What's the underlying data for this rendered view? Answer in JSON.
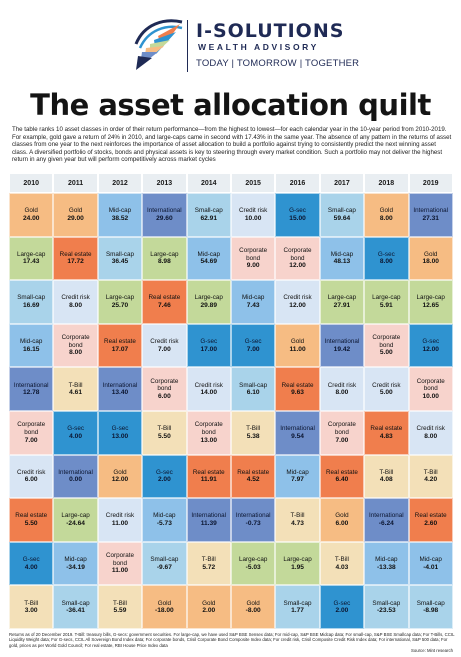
{
  "brand": {
    "name": "I-SOLUTIONS",
    "subtitle": "WEALTH ADVISORY",
    "tagline": "TODAY | TOMORROW | TOGETHER"
  },
  "title": "The asset allocation quilt",
  "description": "The table ranks 10 asset classes in order of their return performance—from the highest to lowest—for each calendar year in the 10-year period from 2010-2019. For example, gold gave a return of 24% in 2010, and large-caps came in second with 17.43% in the same year. The absence of any pattern in the returns of asset classes from one year to the next reinforces the importance of asset allocation to build a portfolio against trying to consistently predict the next winning asset class. A diversified portfolio of stocks, bonds and physical assets is key to steering through every market condition. Such a portfolio may not deliver the highest return in any given year but will perform competitively across market cycles",
  "colors": {
    "Gold": "#f6bc83",
    "Large-cap": "#c3d99a",
    "Small-cap": "#a9d3ea",
    "Mid-cap": "#8ec1e9",
    "International": "#6e8dc8",
    "Corporate bond": "#f7d3cc",
    "Credit risk": "#d8e5f4",
    "T-Bill": "#f3e0b8",
    "G-sec": "#2f93d0",
    "Real estate": "#f07e4d"
  },
  "years": [
    "2010",
    "2011",
    "2012",
    "2013",
    "2014",
    "2015",
    "2016",
    "2017",
    "2018",
    "2019"
  ],
  "quilt": [
    [
      {
        "asset": "Gold",
        "label": "Gold",
        "value": "24.00"
      },
      {
        "asset": "Large-cap",
        "label": "Large-cap",
        "value": "17.43"
      },
      {
        "asset": "Small-cap",
        "label": "Small-cap",
        "value": "16.69"
      },
      {
        "asset": "Mid-cap",
        "label": "Mid-cap",
        "value": "16.15"
      },
      {
        "asset": "International",
        "label": "International",
        "value": "12.78"
      },
      {
        "asset": "Corporate bond",
        "label": "Corporate\nbond",
        "value": "7.00"
      },
      {
        "asset": "Credit risk",
        "label": "Credit risk",
        "value": "6.00"
      },
      {
        "asset": "Real estate",
        "label": "Real estate",
        "value": "5.50"
      },
      {
        "asset": "G-sec",
        "label": "G-sec",
        "value": "4.00"
      },
      {
        "asset": "T-Bill",
        "label": "T-Bill",
        "value": "3.00"
      }
    ],
    [
      {
        "asset": "Gold",
        "label": "Gold",
        "value": "29.00"
      },
      {
        "asset": "Real estate",
        "label": "Real estate",
        "value": "17.72"
      },
      {
        "asset": "Credit risk",
        "label": "Credit risk",
        "value": "8.00"
      },
      {
        "asset": "Corporate bond",
        "label": "Corporate\nbond",
        "value": "8.00"
      },
      {
        "asset": "T-Bill",
        "label": "T-Bill",
        "value": "4.61"
      },
      {
        "asset": "G-sec",
        "label": "G-sec",
        "value": "4.00"
      },
      {
        "asset": "International",
        "label": "International",
        "value": "0.00"
      },
      {
        "asset": "Large-cap",
        "label": "Large-cap",
        "value": "-24.64"
      },
      {
        "asset": "Mid-cap",
        "label": "Mid-cap",
        "value": "-34.19"
      },
      {
        "asset": "Small-cap",
        "label": "Small-cap",
        "value": "-36.41"
      }
    ],
    [
      {
        "asset": "Mid-cap",
        "label": "Mid-cap",
        "value": "38.52"
      },
      {
        "asset": "Small-cap",
        "label": "Small-cap",
        "value": "36.45"
      },
      {
        "asset": "Large-cap",
        "label": "Large-cap",
        "value": "25.70"
      },
      {
        "asset": "Real estate",
        "label": "Real estate",
        "value": "17.07"
      },
      {
        "asset": "International",
        "label": "International",
        "value": "13.40"
      },
      {
        "asset": "G-sec",
        "label": "G-sec",
        "value": "13.00"
      },
      {
        "asset": "Gold",
        "label": "Gold",
        "value": "12.00"
      },
      {
        "asset": "Credit risk",
        "label": "Credit risk",
        "value": "11.00"
      },
      {
        "asset": "Corporate bond",
        "label": "Corporate\nbond",
        "value": "11.00"
      },
      {
        "asset": "T-Bill",
        "label": "T-Bill",
        "value": "5.59"
      }
    ],
    [
      {
        "asset": "International",
        "label": "International",
        "value": "29.60"
      },
      {
        "asset": "Large-cap",
        "label": "Large-cap",
        "value": "8.98"
      },
      {
        "asset": "Real estate",
        "label": "Real estate",
        "value": "7.46"
      },
      {
        "asset": "Credit risk",
        "label": "Credit risk",
        "value": "7.00"
      },
      {
        "asset": "Corporate bond",
        "label": "Corporate\nbond",
        "value": "6.00"
      },
      {
        "asset": "T-Bill",
        "label": "T-Bill",
        "value": "5.50"
      },
      {
        "asset": "G-sec",
        "label": "G-sec",
        "value": "2.00"
      },
      {
        "asset": "Mid-cap",
        "label": "Mid-cap",
        "value": "-5.73"
      },
      {
        "asset": "Small-cap",
        "label": "Small-cap",
        "value": "-9.67"
      },
      {
        "asset": "Gold",
        "label": "Gold",
        "value": "-18.00"
      }
    ],
    [
      {
        "asset": "Small-cap",
        "label": "Small-cap",
        "value": "62.91"
      },
      {
        "asset": "Mid-cap",
        "label": "Mid-cap",
        "value": "54.69"
      },
      {
        "asset": "Large-cap",
        "label": "Large-cap",
        "value": "29.89"
      },
      {
        "asset": "G-sec",
        "label": "G-sec",
        "value": "17.00"
      },
      {
        "asset": "Credit risk",
        "label": "Credit risk",
        "value": "14.00"
      },
      {
        "asset": "Corporate bond",
        "label": "Corporate\nbond",
        "value": "13.00"
      },
      {
        "asset": "Real estate",
        "label": "Real estate",
        "value": "11.91"
      },
      {
        "asset": "International",
        "label": "International",
        "value": "11.39"
      },
      {
        "asset": "T-Bill",
        "label": "T-Bill",
        "value": "5.72"
      },
      {
        "asset": "Gold",
        "label": "Gold",
        "value": "2.00"
      }
    ],
    [
      {
        "asset": "Credit risk",
        "label": "Credit risk",
        "value": "10.00"
      },
      {
        "asset": "Corporate bond",
        "label": "Corporate\nbond",
        "value": "9.00"
      },
      {
        "asset": "Mid-cap",
        "label": "Mid-cap",
        "value": "7.43"
      },
      {
        "asset": "G-sec",
        "label": "G-sec",
        "value": "7.00"
      },
      {
        "asset": "Small-cap",
        "label": "Small-cap",
        "value": "6.10"
      },
      {
        "asset": "T-Bill",
        "label": "T-Bill",
        "value": "5.38"
      },
      {
        "asset": "Real estate",
        "label": "Real estate",
        "value": "4.52"
      },
      {
        "asset": "International",
        "label": "International",
        "value": "-0.73"
      },
      {
        "asset": "Large-cap",
        "label": "Large-cap",
        "value": "-5.03"
      },
      {
        "asset": "Gold",
        "label": "Gold",
        "value": "-8.00"
      }
    ],
    [
      {
        "asset": "G-sec",
        "label": "G-sec",
        "value": "15.00"
      },
      {
        "asset": "Corporate bond",
        "label": "Corporate\nbond",
        "value": "12.00"
      },
      {
        "asset": "Credit risk",
        "label": "Credit risk",
        "value": "12.00"
      },
      {
        "asset": "Gold",
        "label": "Gold",
        "value": "11.00"
      },
      {
        "asset": "Real estate",
        "label": "Real estate",
        "value": "9.63"
      },
      {
        "asset": "International",
        "label": "International",
        "value": "9.54"
      },
      {
        "asset": "Mid-cap",
        "label": "Mid-cap",
        "value": "7.97"
      },
      {
        "asset": "T-Bill",
        "label": "T-Bill",
        "value": "4.73"
      },
      {
        "asset": "Large-cap",
        "label": "Large-cap",
        "value": "1.95"
      },
      {
        "asset": "Small-cap",
        "label": "Small-cap",
        "value": "1.77"
      }
    ],
    [
      {
        "asset": "Small-cap",
        "label": "Small-cap",
        "value": "59.64"
      },
      {
        "asset": "Mid-cap",
        "label": "Mid-cap",
        "value": "48.13"
      },
      {
        "asset": "Large-cap",
        "label": "Large-cap",
        "value": "27.91"
      },
      {
        "asset": "International",
        "label": "International",
        "value": "19.42"
      },
      {
        "asset": "Credit risk",
        "label": "Credit risk",
        "value": "8.00"
      },
      {
        "asset": "Corporate bond",
        "label": "Corporate\nbond",
        "value": "7.00"
      },
      {
        "asset": "Real estate",
        "label": "Real estate",
        "value": "6.40"
      },
      {
        "asset": "Gold",
        "label": "Gold",
        "value": "6.00"
      },
      {
        "asset": "T-Bill",
        "label": "T-Bill",
        "value": "4.03"
      },
      {
        "asset": "G-sec",
        "label": "G-sec",
        "value": "2.00"
      }
    ],
    [
      {
        "asset": "Gold",
        "label": "Gold",
        "value": "8.00"
      },
      {
        "asset": "G-sec",
        "label": "G-sec",
        "value": "8.00"
      },
      {
        "asset": "Large-cap",
        "label": "Large-cap",
        "value": "5.91"
      },
      {
        "asset": "Corporate bond",
        "label": "Corporate\nbond",
        "value": "5.00"
      },
      {
        "asset": "Credit risk",
        "label": "Credit risk",
        "value": "5.00"
      },
      {
        "asset": "Real estate",
        "label": "Real estate",
        "value": "4.83"
      },
      {
        "asset": "T-Bill",
        "label": "T-Bill",
        "value": "4.08"
      },
      {
        "asset": "International",
        "label": "International",
        "value": "-6.24"
      },
      {
        "asset": "Mid-cap",
        "label": "Mid-cap",
        "value": "-13.38"
      },
      {
        "asset": "Small-cap",
        "label": "Small-cap",
        "value": "-23.53"
      }
    ],
    [
      {
        "asset": "International",
        "label": "International",
        "value": "27.31"
      },
      {
        "asset": "Gold",
        "label": "Gold",
        "value": "18.00"
      },
      {
        "asset": "Large-cap",
        "label": "Large-cap",
        "value": "12.65"
      },
      {
        "asset": "G-sec",
        "label": "G-sec",
        "value": "12.00"
      },
      {
        "asset": "Corporate bond",
        "label": "Corporate\nbond",
        "value": "10.00"
      },
      {
        "asset": "Credit risk",
        "label": "Credit risk",
        "value": "8.00"
      },
      {
        "asset": "T-Bill",
        "label": "T-Bill",
        "value": "4.20"
      },
      {
        "asset": "Real estate",
        "label": "Real estate",
        "value": "2.60"
      },
      {
        "asset": "Mid-cap",
        "label": "Mid-cap",
        "value": "-4.01"
      },
      {
        "asset": "Small-cap",
        "label": "Small-cap",
        "value": "-8.98"
      }
    ]
  ],
  "footnote": "Returns as of 20 December 2019. T-Bill: treasury bills, G-secs: government securities. For large-cap, we have used S&P BSE Sensex data; For mid-cap, S&P BSE Midcap data; For small-cap, S&P BSE Smallcap data; For T-Bills, CCIL Liquidity Weight data; For G-secs, CCIL All Sovereign Bond Index data; For corporate bonds, Crisil Corporate Bond Composite Index data; For credit risk, Crisil Composite Credit Risk Index data; For international, S&P 500 data; For gold, prices as per World Gold Council; For real estate, RBI House Price Index data",
  "source": "Source: Mint research"
}
